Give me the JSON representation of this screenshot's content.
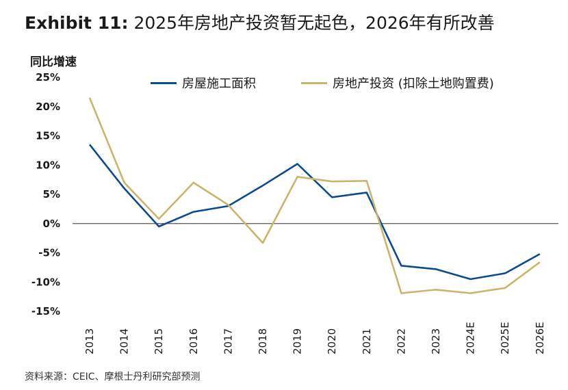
{
  "title": {
    "exhibit": "Exhibit 11:",
    "text": "2025年房地产投资暂无起色，2026年有所改善"
  },
  "source_note": "资料来源：CEIC、摩根士丹利研究部预测",
  "chart_data": {
    "type": "line",
    "ylabel": "同比增速",
    "xlabel": "",
    "categories": [
      "2013",
      "2014",
      "2015",
      "2016",
      "2017",
      "2018",
      "2019",
      "2020",
      "2021",
      "2022",
      "2023",
      "2024E",
      "2025E",
      "2026E"
    ],
    "ylim": [
      -15,
      25
    ],
    "yticks": [
      "25%",
      "20%",
      "15%",
      "10%",
      "5%",
      "0%",
      "-5%",
      "-10%",
      "-15%"
    ],
    "ytick_values": [
      25,
      20,
      15,
      10,
      5,
      0,
      -5,
      -10,
      -15
    ],
    "grid": false,
    "legend_position": "top",
    "series": [
      {
        "name": "房屋施工面积",
        "color": "#0a4a8f",
        "values": [
          13.5,
          6.0,
          -0.5,
          2.0,
          3.0,
          6.5,
          10.2,
          4.5,
          5.3,
          -7.2,
          -7.8,
          -9.5,
          -8.5,
          -5.2
        ]
      },
      {
        "name": "房地产投资 (扣除土地购置费)",
        "color": "#c9b56a",
        "values": [
          21.5,
          7.0,
          0.8,
          7.0,
          3.2,
          -3.3,
          8.0,
          7.2,
          7.3,
          -11.9,
          -11.3,
          -11.9,
          -11.0,
          -6.6
        ]
      }
    ]
  }
}
